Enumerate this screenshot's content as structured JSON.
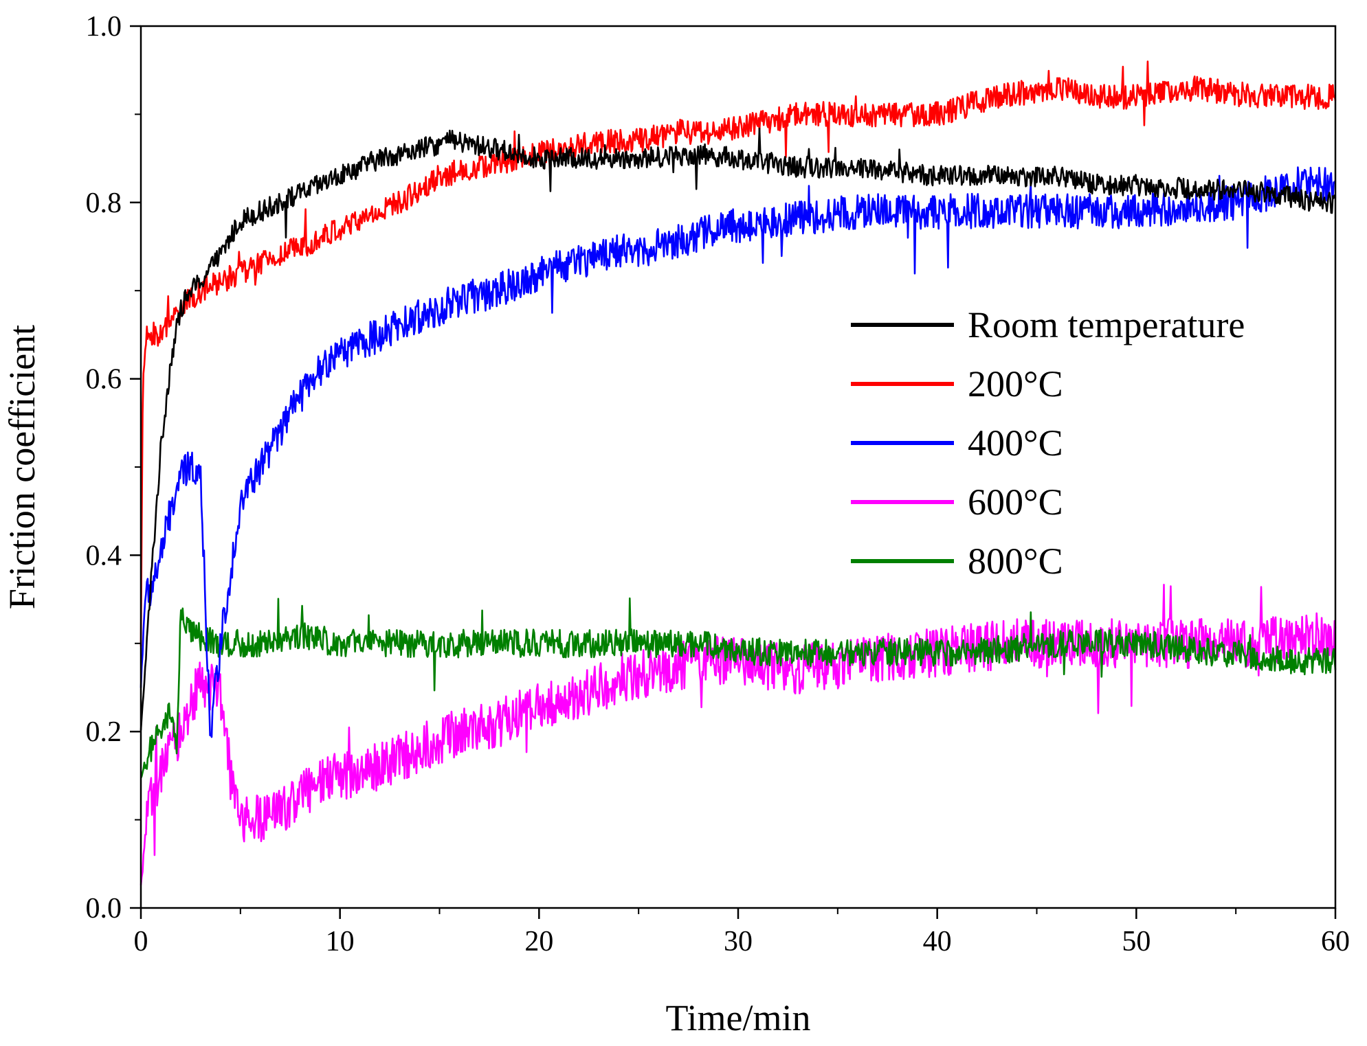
{
  "chart_data": {
    "type": "line",
    "title": "",
    "xlabel": "Time/min",
    "ylabel": "Friction coefficient",
    "xlim": [
      0,
      60
    ],
    "ylim": [
      0.0,
      1.0
    ],
    "xticks": [
      0,
      10,
      20,
      30,
      40,
      50,
      60
    ],
    "xtick_labels": [
      "0",
      "10",
      "20",
      "30",
      "40",
      "50",
      "60"
    ],
    "yticks": [
      0.0,
      0.2,
      0.4,
      0.6,
      0.8,
      1.0
    ],
    "ytick_labels": [
      "0.0",
      "0.2",
      "0.4",
      "0.6",
      "0.8",
      "1.0"
    ],
    "grid": false,
    "legend_position": "center-right",
    "series": [
      {
        "name": "Room temperature",
        "color": "#000000",
        "noise": 0.012,
        "x": [
          0,
          0.3,
          0.6,
          1.0,
          1.5,
          2.0,
          2.5,
          3.0,
          4.0,
          5.0,
          6.0,
          7.0,
          8.0,
          10.0,
          12.0,
          14.0,
          15.5,
          18.0,
          20.0,
          22.0,
          25.0,
          28.0,
          30.0,
          33.0,
          36.0,
          40.0,
          43.0,
          46.0,
          48.0,
          50.0,
          53.0,
          55.0,
          57.0,
          59.0,
          60.0
        ],
        "y": [
          0.2,
          0.3,
          0.4,
          0.52,
          0.62,
          0.68,
          0.7,
          0.71,
          0.74,
          0.78,
          0.79,
          0.8,
          0.81,
          0.83,
          0.85,
          0.86,
          0.87,
          0.86,
          0.85,
          0.85,
          0.85,
          0.855,
          0.85,
          0.84,
          0.84,
          0.83,
          0.83,
          0.83,
          0.82,
          0.82,
          0.815,
          0.815,
          0.81,
          0.8,
          0.8
        ]
      },
      {
        "name": "200°C",
        "color": "#ff0000",
        "noise": 0.014,
        "x": [
          0,
          0.1,
          0.3,
          1.0,
          2.0,
          3.0,
          5.0,
          7.0,
          9.0,
          11.0,
          13.0,
          15.0,
          17.0,
          19.0,
          21.0,
          23.0,
          25.0,
          27.0,
          29.0,
          31.0,
          33.0,
          36.0,
          40.0,
          43.0,
          46.0,
          48.0,
          50.0,
          53.0,
          56.0,
          58.0,
          60.0
        ],
        "y": [
          0.3,
          0.6,
          0.65,
          0.65,
          0.68,
          0.7,
          0.72,
          0.74,
          0.76,
          0.78,
          0.8,
          0.83,
          0.84,
          0.85,
          0.86,
          0.87,
          0.87,
          0.88,
          0.88,
          0.89,
          0.9,
          0.9,
          0.9,
          0.92,
          0.93,
          0.92,
          0.92,
          0.93,
          0.92,
          0.92,
          0.92
        ]
      },
      {
        "name": "400°C",
        "color": "#0000ff",
        "noise": 0.02,
        "x": [
          0,
          0.2,
          0.5,
          1.0,
          1.5,
          2.0,
          2.5,
          3.0,
          3.3,
          3.5,
          4.0,
          4.5,
          5.0,
          6.0,
          7.0,
          8.0,
          9.0,
          10.0,
          12.0,
          14.0,
          16.0,
          18.0,
          20.0,
          23.0,
          26.0,
          29.0,
          32.0,
          36.0,
          40.0,
          45.0,
          50.0,
          55.0,
          58.0,
          60.0
        ],
        "y": [
          0.25,
          0.35,
          0.36,
          0.4,
          0.45,
          0.49,
          0.5,
          0.5,
          0.3,
          0.2,
          0.3,
          0.38,
          0.46,
          0.5,
          0.54,
          0.58,
          0.61,
          0.63,
          0.65,
          0.67,
          0.69,
          0.7,
          0.72,
          0.74,
          0.75,
          0.77,
          0.78,
          0.79,
          0.79,
          0.79,
          0.79,
          0.8,
          0.82,
          0.82
        ]
      },
      {
        "name": "600°C",
        "color": "#ff00ff",
        "noise": 0.028,
        "x": [
          0,
          0.2,
          0.5,
          1.0,
          2.0,
          3.0,
          4.0,
          4.5,
          5.0,
          6.0,
          7.0,
          8.0,
          10.0,
          12.0,
          14.0,
          16.0,
          18.0,
          20.0,
          22.0,
          24.0,
          26.0,
          28.0,
          30.0,
          33.0,
          36.0,
          40.0,
          44.0,
          48.0,
          52.0,
          56.0,
          60.0
        ],
        "y": [
          0.02,
          0.08,
          0.12,
          0.15,
          0.2,
          0.26,
          0.24,
          0.15,
          0.1,
          0.1,
          0.11,
          0.13,
          0.15,
          0.16,
          0.18,
          0.2,
          0.21,
          0.23,
          0.24,
          0.26,
          0.27,
          0.28,
          0.28,
          0.27,
          0.28,
          0.29,
          0.3,
          0.3,
          0.3,
          0.3,
          0.31
        ]
      },
      {
        "name": "800°C",
        "color": "#008000",
        "noise": 0.016,
        "x": [
          0,
          0.5,
          1.0,
          1.5,
          1.8,
          2.0,
          2.5,
          4.0,
          6.0,
          8.0,
          10.0,
          14.0,
          18.0,
          22.0,
          26.0,
          28.0,
          30.0,
          34.0,
          38.0,
          42.0,
          46.0,
          50.0,
          54.0,
          58.0,
          60.0
        ],
        "y": [
          0.15,
          0.18,
          0.2,
          0.22,
          0.18,
          0.33,
          0.31,
          0.3,
          0.3,
          0.31,
          0.3,
          0.3,
          0.3,
          0.3,
          0.3,
          0.3,
          0.29,
          0.29,
          0.29,
          0.29,
          0.3,
          0.3,
          0.29,
          0.28,
          0.28
        ]
      }
    ]
  }
}
